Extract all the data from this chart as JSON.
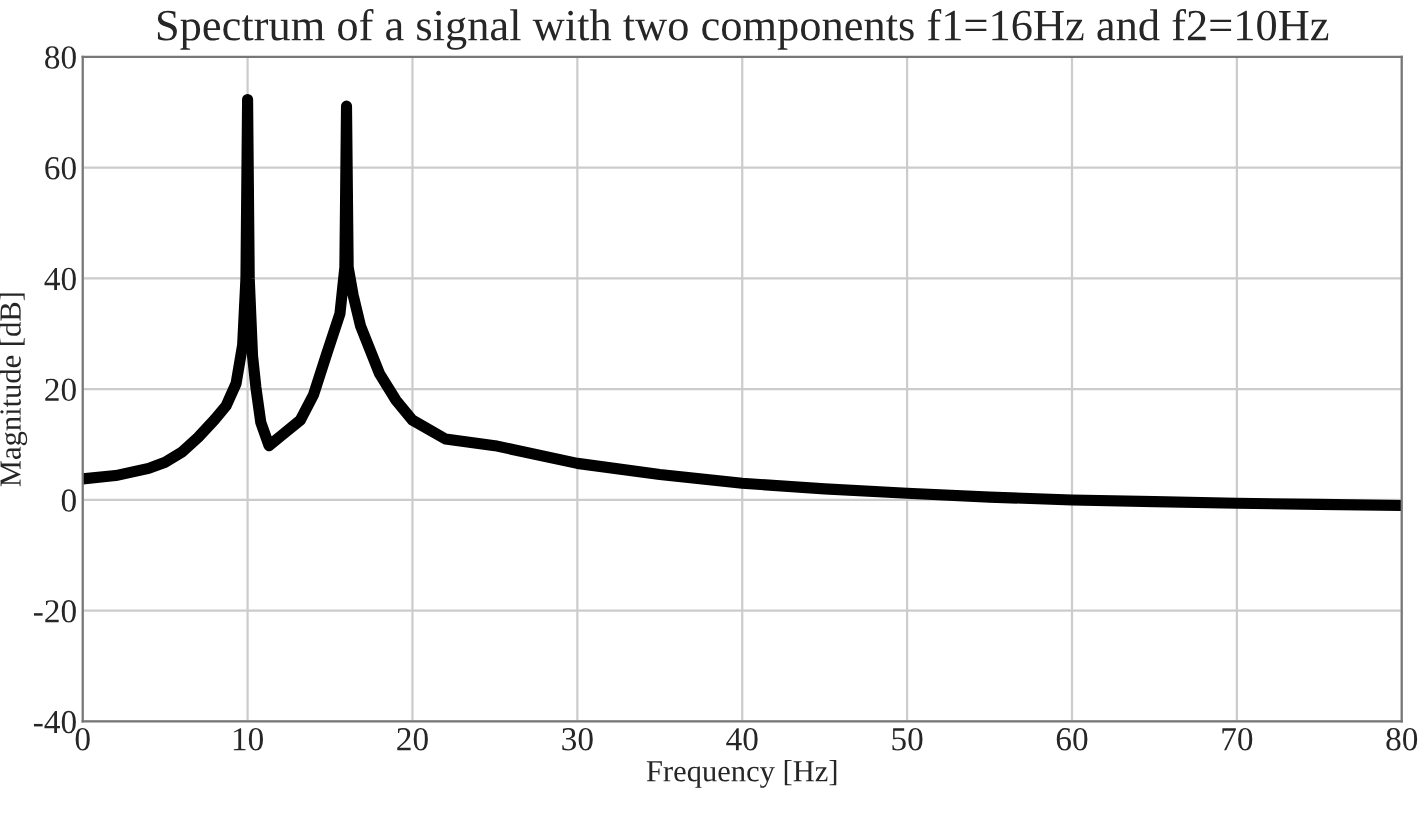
{
  "chart_data": {
    "type": "line",
    "title": "Spectrum of a signal with two components f1=16Hz and f2=10Hz",
    "xlabel": "Frequency [Hz]",
    "ylabel": "Magnitude [dB]",
    "series": [
      {
        "color": "#000000",
        "x": [
          0,
          2,
          4,
          5,
          6,
          7,
          8,
          8.7,
          9.3,
          9.7,
          9.9,
          10,
          10.1,
          10.3,
          10.5,
          10.8,
          11.3,
          12,
          13.2,
          14,
          14.8,
          15.6,
          15.9,
          16,
          16.1,
          16.4,
          16.85,
          18,
          19,
          20,
          22,
          25,
          30,
          35,
          40,
          45,
          50,
          55,
          60,
          65,
          70,
          75,
          80
        ],
        "values": [
          3.8,
          4.4,
          5.7,
          6.8,
          8.6,
          11.3,
          14.5,
          17,
          21,
          28,
          40,
          72.3,
          40,
          26,
          20.4,
          14,
          9.8,
          11.5,
          14.4,
          19,
          26.4,
          33.6,
          42,
          71.1,
          42,
          37,
          31.4,
          22.8,
          18,
          14.4,
          11,
          9.8,
          6.6,
          4.6,
          3.0,
          2.0,
          1.2,
          0.5,
          0,
          -0.3,
          -0.6,
          -0.8,
          -1.0
        ]
      }
    ],
    "xlim": [
      0,
      80
    ],
    "xticks": [
      0,
      10,
      20,
      30,
      40,
      50,
      60,
      70,
      80
    ],
    "ylim": [
      -40,
      80
    ],
    "yticks": [
      -40,
      -20,
      0,
      20,
      40,
      60,
      80
    ],
    "grid": true,
    "marker": "none",
    "line_style": "solid",
    "legend": false
  }
}
